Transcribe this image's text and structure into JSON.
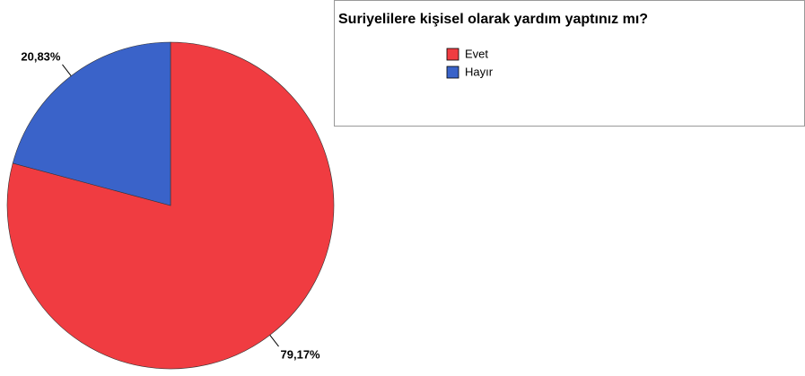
{
  "chart_data": {
    "type": "pie",
    "title": "Suriyelilere kişisel olarak yardım yaptınız mı?",
    "categories": [
      "Evet",
      "Hayır"
    ],
    "values": [
      79.17,
      20.83
    ],
    "value_labels": [
      "79,17%",
      "20,83%"
    ],
    "colors": [
      "#f03c41",
      "#3a63c9"
    ],
    "legend": "top-right"
  }
}
